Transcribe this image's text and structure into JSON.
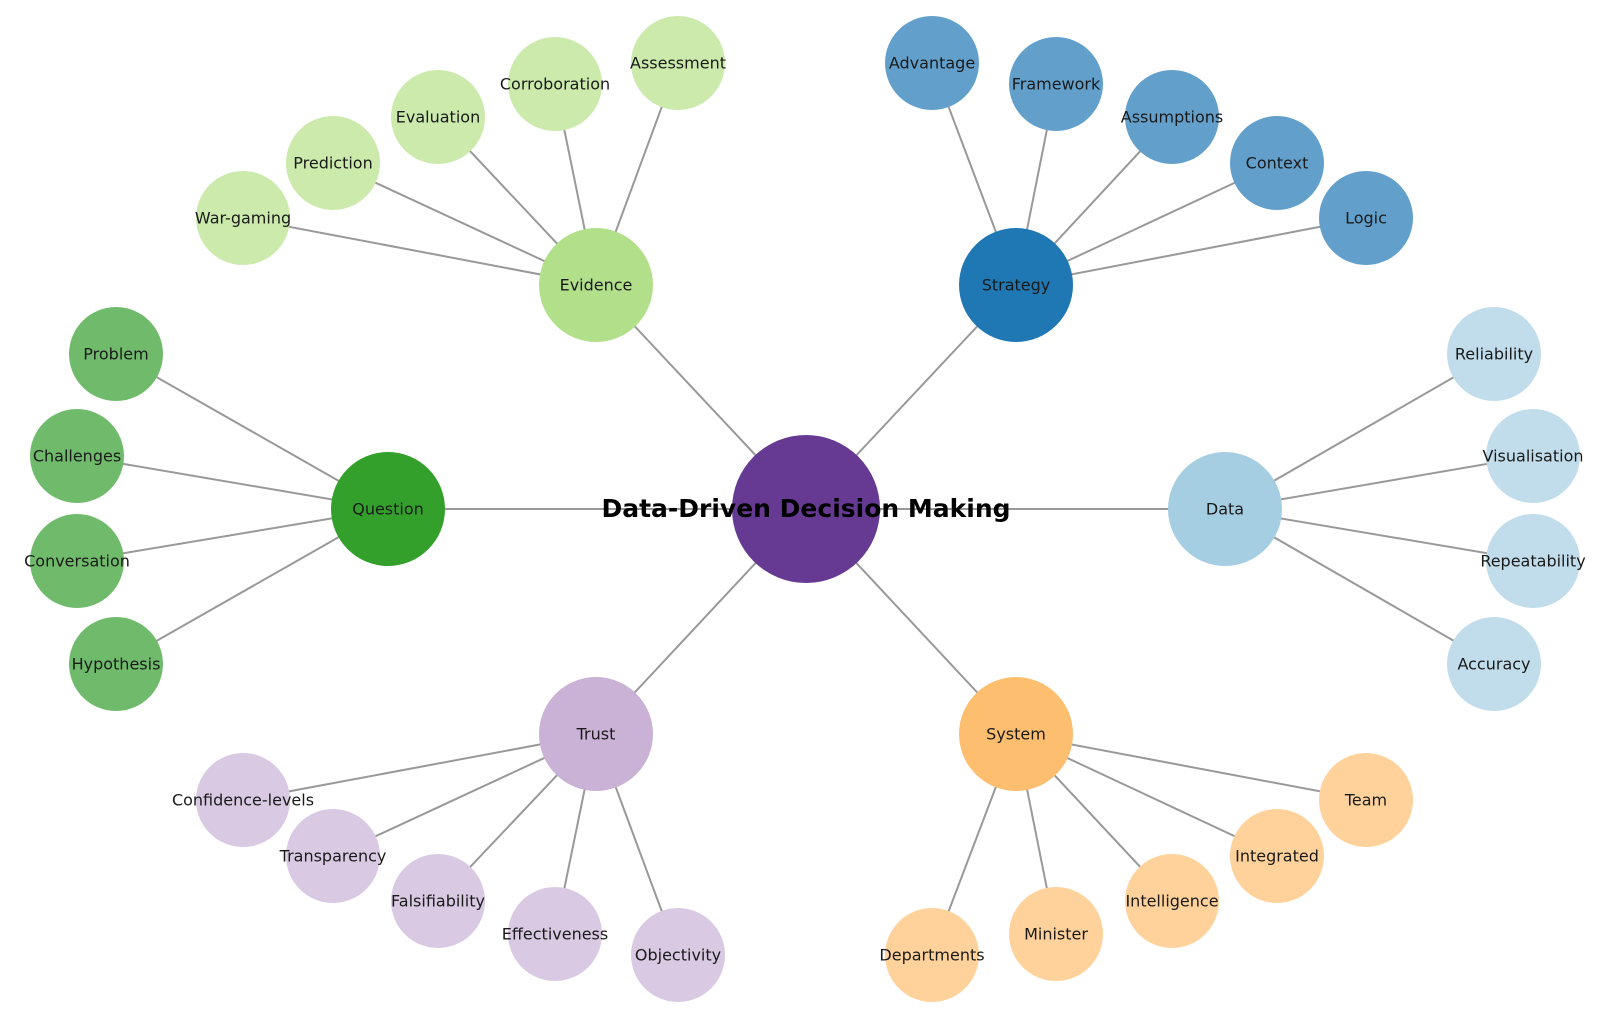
{
  "center": {
    "label": "Data-Driven Decision Making",
    "color": "#663a93"
  },
  "branches": [
    {
      "key": "evidence",
      "label": "Evidence",
      "color": "#b2df8a",
      "leaf_color": "#cbeaac",
      "leaves": [
        "War-gaming",
        "Prediction",
        "Evaluation",
        "Corroboration",
        "Assessment"
      ]
    },
    {
      "key": "strategy",
      "label": "Strategy",
      "color": "#1f78b4",
      "leaf_color": "#62a0cb",
      "leaves": [
        "Advantage",
        "Framework",
        "Assumptions",
        "Context",
        "Logic"
      ]
    },
    {
      "key": "question",
      "label": "Question",
      "color": "#33a02c",
      "leaf_color": "#70bb6b",
      "leaves": [
        "Problem",
        "Challenges",
        "Conversation",
        "Hypothesis"
      ]
    },
    {
      "key": "data",
      "label": "Data",
      "color": "#a6cee3",
      "leaf_color": "#c1ddeb",
      "leaves": [
        "Reliability",
        "Visualisation",
        "Repeatability",
        "Accuracy"
      ]
    },
    {
      "key": "trust",
      "label": "Trust",
      "color": "#cab2d6",
      "leaf_color": "#d9c9e2",
      "leaves": [
        "Confidence-levels",
        "Transparency",
        "Falsifiability",
        "Effectiveness",
        "Objectivity"
      ]
    },
    {
      "key": "system",
      "label": "System",
      "color": "#fdbf6f",
      "leaf_color": "#fed29a",
      "leaves": [
        "Departments",
        "Minister",
        "Intelligence",
        "Integrated",
        "Team"
      ]
    }
  ]
}
